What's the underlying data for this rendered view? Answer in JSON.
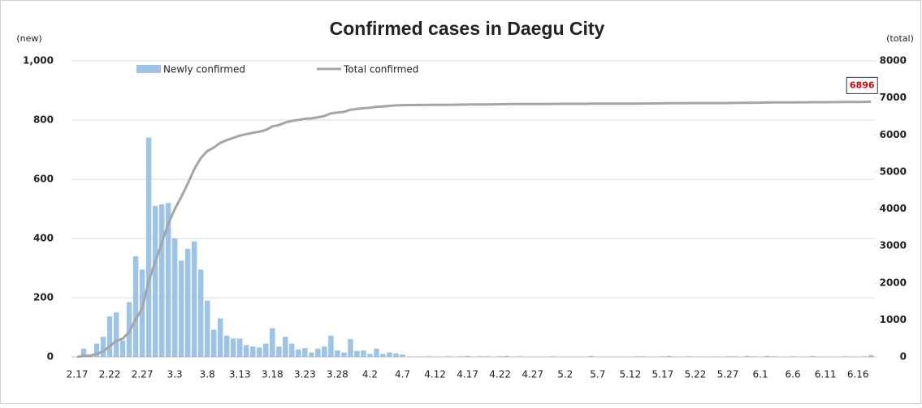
{
  "chart_data": {
    "type": "bar",
    "title": "Confirmed cases in Daegu City",
    "y_label": "(new)",
    "y2_label": "(total)",
    "categories": [
      "2.17",
      null,
      null,
      null,
      null,
      "2.22",
      null,
      null,
      null,
      null,
      "2.27",
      null,
      null,
      null,
      null,
      "3.3",
      null,
      null,
      null,
      null,
      "3.8",
      null,
      null,
      null,
      null,
      "3.13",
      null,
      null,
      null,
      null,
      "3.18",
      null,
      null,
      null,
      null,
      "3.23",
      null,
      null,
      null,
      null,
      "3.28",
      null,
      null,
      null,
      null,
      "4.2",
      null,
      null,
      null,
      null,
      "4.7",
      null,
      null,
      null,
      null,
      "4.12",
      null,
      null,
      null,
      null,
      "4.17",
      null,
      null,
      null,
      null,
      "4.22",
      null,
      null,
      null,
      null,
      "4.27",
      null,
      null,
      null,
      null,
      "5.2",
      null,
      null,
      null,
      null,
      "5.7",
      null,
      null,
      null,
      null,
      "5.12",
      null,
      null,
      null,
      null,
      "5.17",
      null,
      null,
      null,
      null,
      "5.22",
      null,
      null,
      null,
      null,
      "5.27",
      null,
      null,
      null,
      null,
      "6.1",
      null,
      null,
      null,
      null,
      "6.6",
      null,
      null,
      null,
      null,
      "6.11",
      null,
      null,
      null,
      null,
      "6.16",
      null,
      null
    ],
    "series": [
      {
        "name": "Newly confirmed",
        "type": "bar",
        "axis": "y",
        "color": "#9dc3e6",
        "values": [
          0,
          28,
          8,
          45,
          68,
          137,
          150,
          55,
          185,
          340,
          295,
          741,
          510,
          515,
          520,
          400,
          325,
          365,
          390,
          295,
          190,
          92,
          130,
          72,
          62,
          62,
          40,
          35,
          32,
          45,
          97,
          35,
          68,
          45,
          25,
          30,
          15,
          28,
          35,
          72,
          22,
          15,
          60,
          20,
          22,
          10,
          28,
          10,
          15,
          12,
          8,
          1,
          1,
          1,
          2,
          1,
          1,
          2,
          1,
          2,
          3,
          1,
          2,
          2,
          1,
          2,
          3,
          1,
          2,
          1,
          0,
          1,
          0,
          2,
          1,
          0,
          1,
          0,
          0,
          3,
          0,
          1,
          0,
          0,
          1,
          0,
          2,
          2,
          0,
          1,
          2,
          3,
          1,
          0,
          2,
          0,
          1,
          0,
          1,
          0,
          2,
          2,
          1,
          3,
          2,
          1,
          3,
          2,
          1,
          0,
          2,
          1,
          0,
          3,
          1,
          0,
          1,
          0,
          2,
          1,
          1,
          2,
          6
        ]
      },
      {
        "name": "Total confirmed",
        "type": "line",
        "axis": "y2",
        "color": "#a5a5a5",
        "values": [
          0,
          28,
          36,
          81,
          149,
          286,
          436,
          491,
          676,
          1016,
          1311,
          2052,
          2562,
          3077,
          3597,
          3997,
          4322,
          4687,
          5077,
          5372,
          5562,
          5654,
          5784,
          5856,
          5918,
          5980,
          6020,
          6055,
          6087,
          6132,
          6229,
          6264,
          6332,
          6377,
          6402,
          6432,
          6447,
          6475,
          6510,
          6582,
          6604,
          6619,
          6679,
          6699,
          6721,
          6731,
          6759,
          6769,
          6784,
          6796,
          6804,
          6805,
          6806,
          6807,
          6809,
          6810,
          6811,
          6813,
          6814,
          6816,
          6819,
          6820,
          6822,
          6824,
          6825,
          6827,
          6830,
          6831,
          6833,
          6834,
          6834,
          6835,
          6835,
          6837,
          6838,
          6838,
          6839,
          6839,
          6839,
          6842,
          6842,
          6843,
          6843,
          6843,
          6844,
          6844,
          6846,
          6848,
          6848,
          6849,
          6851,
          6854,
          6855,
          6855,
          6857,
          6857,
          6858,
          6858,
          6859,
          6859,
          6861,
          6863,
          6864,
          6867,
          6869,
          6870,
          6873,
          6875,
          6876,
          6876,
          6878,
          6879,
          6879,
          6882,
          6883,
          6883,
          6884,
          6884,
          6886,
          6887,
          6888,
          6890,
          6896
        ],
        "label_index": 122
      }
    ],
    "ylim": [
      0,
      1000
    ],
    "yticks": [
      0,
      200,
      400,
      600,
      800,
      {
        "value": 1000,
        "label": "1,000"
      }
    ],
    "y2lim": [
      0,
      8000
    ],
    "y2ticks": [
      0,
      1000,
      2000,
      3000,
      4000,
      5000,
      6000,
      7000,
      8000
    ],
    "grid": true
  }
}
